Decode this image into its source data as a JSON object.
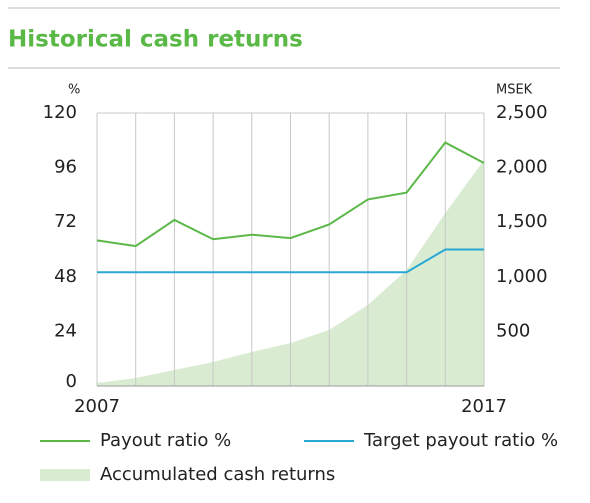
{
  "chart_data": {
    "type": "line",
    "title": "Historical cash returns",
    "y_label": "%",
    "y2_label": "MSEK",
    "categories": [
      "2007",
      null,
      null,
      null,
      null,
      null,
      null,
      null,
      null,
      null,
      "2017"
    ],
    "series": [
      {
        "name": "Payout ratio %",
        "color": "#5cb848",
        "kind": "line",
        "values": [
          64,
          61.5,
          73,
          64.5,
          66.5,
          65,
          71,
          82,
          85,
          107,
          98
        ]
      },
      {
        "name": "Target payout ratio %",
        "color": "#29a8d6",
        "kind": "line",
        "values": [
          50,
          50,
          50,
          50,
          50,
          50,
          50,
          50,
          50,
          60,
          60
        ]
      },
      {
        "name": "Accumulated cash returns",
        "color": "#d9ecd2",
        "kind": "area",
        "axis": "y2",
        "values": [
          27,
          73,
          146,
          220,
          311,
          394,
          513,
          742,
          1062,
          1584,
          2070
        ]
      }
    ],
    "ylim": [
      0,
      120
    ],
    "yticks": [
      0,
      24,
      48,
      72,
      96,
      120
    ],
    "y2lim": [
      0,
      2500
    ],
    "y2ticks": [
      {
        "value": 500,
        "label": "500"
      },
      {
        "value": 1000,
        "label": "1,000"
      },
      {
        "value": 1500,
        "label": "1,500"
      },
      {
        "value": 2000,
        "label": "2,000"
      },
      {
        "value": 2500,
        "label": "2,500"
      }
    ],
    "title_color": "#5ab946"
  }
}
